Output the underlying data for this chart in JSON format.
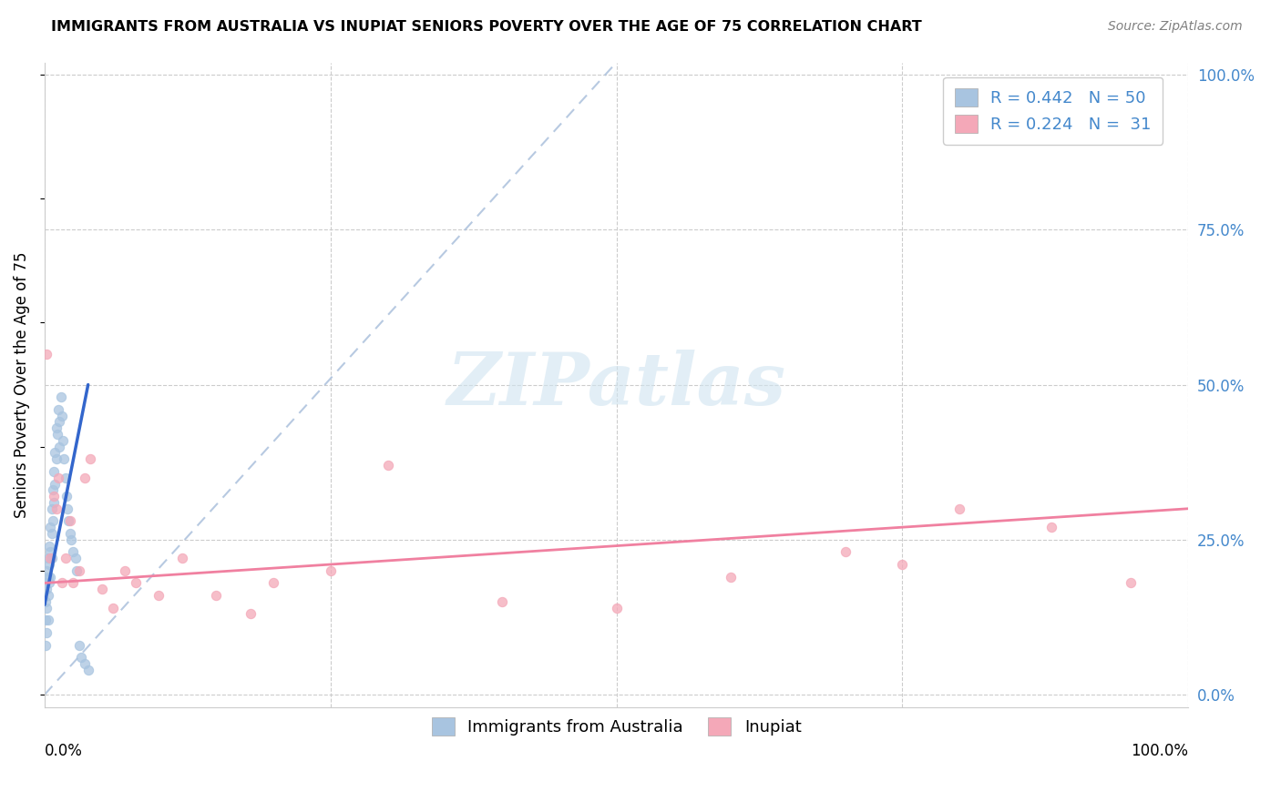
{
  "title": "IMMIGRANTS FROM AUSTRALIA VS INUPIAT SENIORS POVERTY OVER THE AGE OF 75 CORRELATION CHART",
  "source": "Source: ZipAtlas.com",
  "ylabel": "Seniors Poverty Over the Age of 75",
  "ytick_values": [
    0.0,
    0.25,
    0.5,
    0.75,
    1.0
  ],
  "ytick_labels": [
    "0.0%",
    "25.0%",
    "50.0%",
    "75.0%",
    "100.0%"
  ],
  "xlim": [
    0.0,
    1.0
  ],
  "ylim": [
    -0.02,
    1.02
  ],
  "color_blue": "#a8c4e0",
  "color_pink": "#f4a8b8",
  "color_blue_text": "#4488cc",
  "color_trendline_blue": "#3366cc",
  "color_trendline_pink": "#f080a0",
  "color_dashed": "#b0c4de",
  "watermark_color": "#d0e4f0",
  "australia_x": [
    0.001,
    0.001,
    0.001,
    0.001,
    0.002,
    0.002,
    0.002,
    0.002,
    0.003,
    0.003,
    0.003,
    0.003,
    0.004,
    0.004,
    0.004,
    0.005,
    0.005,
    0.005,
    0.006,
    0.006,
    0.006,
    0.007,
    0.007,
    0.008,
    0.008,
    0.009,
    0.009,
    0.01,
    0.01,
    0.011,
    0.012,
    0.013,
    0.013,
    0.014,
    0.015,
    0.016,
    0.017,
    0.018,
    0.019,
    0.02,
    0.021,
    0.022,
    0.023,
    0.025,
    0.027,
    0.028,
    0.03,
    0.032,
    0.035,
    0.038
  ],
  "australia_y": [
    0.18,
    0.15,
    0.12,
    0.08,
    0.2,
    0.17,
    0.14,
    0.1,
    0.22,
    0.19,
    0.16,
    0.12,
    0.24,
    0.21,
    0.18,
    0.27,
    0.23,
    0.19,
    0.3,
    0.26,
    0.22,
    0.33,
    0.28,
    0.36,
    0.31,
    0.39,
    0.34,
    0.43,
    0.38,
    0.42,
    0.46,
    0.44,
    0.4,
    0.48,
    0.45,
    0.41,
    0.38,
    0.35,
    0.32,
    0.3,
    0.28,
    0.26,
    0.25,
    0.23,
    0.22,
    0.2,
    0.08,
    0.06,
    0.05,
    0.04
  ],
  "inupiat_x": [
    0.002,
    0.005,
    0.008,
    0.01,
    0.012,
    0.015,
    0.018,
    0.022,
    0.025,
    0.03,
    0.035,
    0.04,
    0.05,
    0.06,
    0.07,
    0.08,
    0.1,
    0.12,
    0.15,
    0.18,
    0.2,
    0.25,
    0.3,
    0.4,
    0.5,
    0.6,
    0.7,
    0.75,
    0.8,
    0.88,
    0.95
  ],
  "inupiat_y": [
    0.55,
    0.22,
    0.32,
    0.3,
    0.35,
    0.18,
    0.22,
    0.28,
    0.18,
    0.2,
    0.35,
    0.38,
    0.17,
    0.14,
    0.2,
    0.18,
    0.16,
    0.22,
    0.16,
    0.13,
    0.18,
    0.2,
    0.37,
    0.15,
    0.14,
    0.19,
    0.23,
    0.21,
    0.3,
    0.27,
    0.18
  ],
  "australia_trendline_x": [
    0.0,
    0.038
  ],
  "australia_trendline_y": [
    0.145,
    0.5
  ],
  "inupiat_trendline_x": [
    0.0,
    1.0
  ],
  "inupiat_trendline_y": [
    0.18,
    0.3
  ],
  "dashed_line_x": [
    0.0,
    0.5
  ],
  "dashed_line_y": [
    0.0,
    1.02
  ]
}
